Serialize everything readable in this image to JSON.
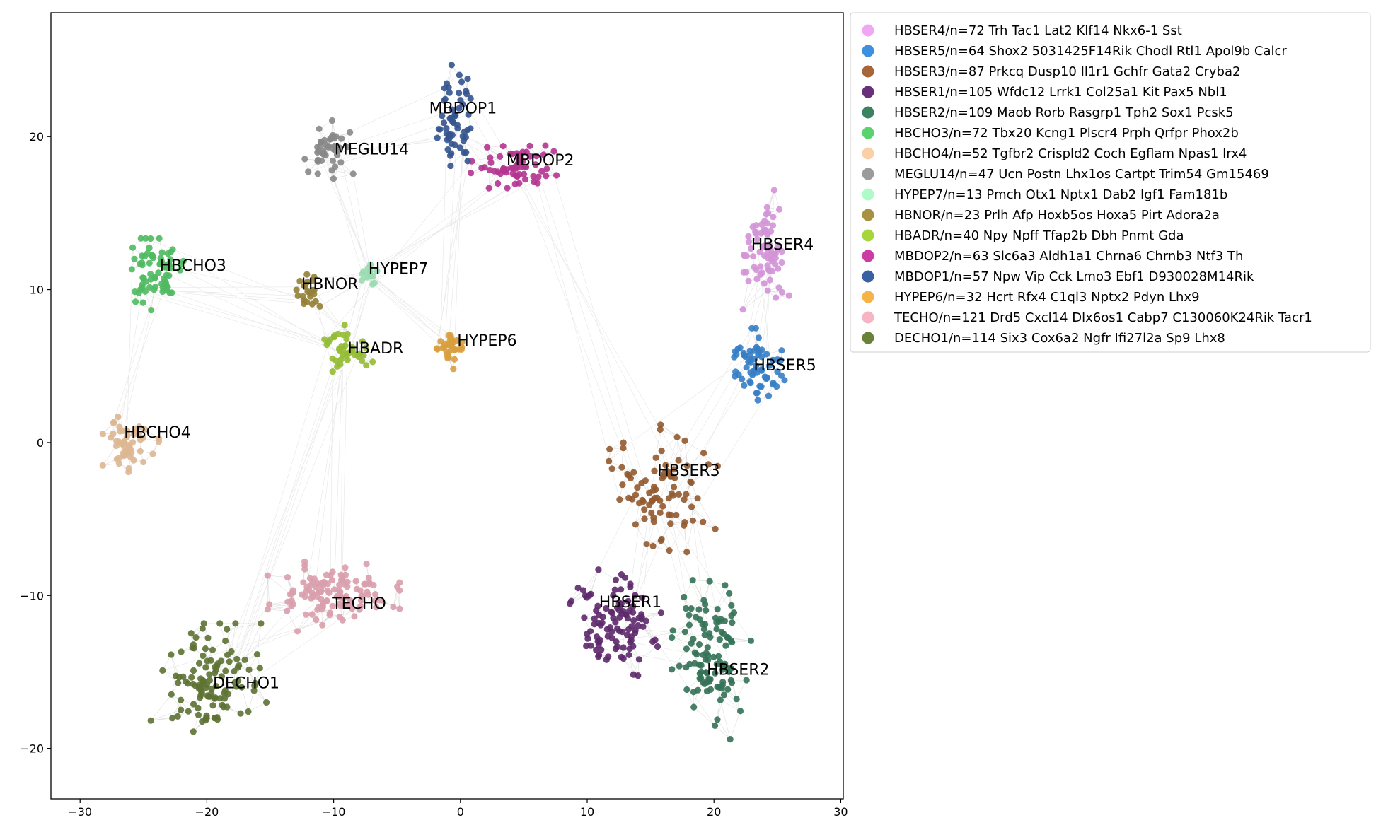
{
  "chart_data": {
    "type": "scatter",
    "title": "",
    "xlabel": "",
    "ylabel": "",
    "xlim": [
      -32.3,
      30.2
    ],
    "ylim": [
      -23.3,
      28.1
    ],
    "xticks": [
      -30,
      -20,
      -10,
      0,
      10,
      20,
      30
    ],
    "yticks": [
      -20,
      -10,
      0,
      10,
      20
    ],
    "grid": false,
    "legend_position": "outside-right",
    "edges": "light gray kNN graph edges connecting points within and between clusters",
    "series": [
      {
        "name": "HBSER4/n=72 Trh Tac1 Lat2 Klf14 Nkx6-1 Sst",
        "label": "HBSER4",
        "color": "#f0a8f4",
        "label_pos": [
          25.4,
          12.9
        ],
        "center": [
          24.1,
          12.6
        ],
        "spread": [
          1.4,
          3.0
        ],
        "n": 72,
        "seed": 11
      },
      {
        "name": "HBSER5/n=64 Shox2 5031425F14Rik Chodl Rtl1 Apol9b Calcr",
        "label": "HBSER5",
        "color": "#3d8fe0",
        "label_pos": [
          25.6,
          5.0
        ],
        "center": [
          23.4,
          5.0
        ],
        "spread": [
          1.8,
          1.9
        ],
        "n": 64,
        "seed": 12
      },
      {
        "name": "HBSER3/n=87 Prkcq Dusp10 Il1r1 Gchfr Gata2 Cryba2",
        "label": "HBSER3",
        "color": "#a66637",
        "label_pos": [
          18.0,
          -1.9
        ],
        "center": [
          16.0,
          -3.0
        ],
        "spread": [
          3.3,
          3.2
        ],
        "n": 87,
        "seed": 13
      },
      {
        "name": "HBSER1/n=105 Wfdc12 Lrrk1 Col25a1 Kit Pax5 Nbl1",
        "label": "HBSER1",
        "color": "#6a2f7a",
        "label_pos": [
          13.4,
          -10.5
        ],
        "center": [
          12.4,
          -11.6
        ],
        "spread": [
          2.9,
          2.8
        ],
        "n": 105,
        "seed": 14
      },
      {
        "name": "HBSER2/n=109 Maob Rorb Rasgrp1 Tph2 Sox1 Pcsk5",
        "label": "HBSER2",
        "color": "#3b8263",
        "label_pos": [
          21.9,
          -14.9
        ],
        "center": [
          19.8,
          -14.2
        ],
        "spread": [
          2.4,
          4.0
        ],
        "n": 109,
        "seed": 15
      },
      {
        "name": "HBCHO3/n=72 Tbx20 Kcng1 Plscr4 Prph Qrfpr Phox2b",
        "label": "HBCHO3",
        "color": "#5ad36e",
        "label_pos": [
          -21.1,
          11.5
        ],
        "center": [
          -23.8,
          11.0
        ],
        "spread": [
          1.9,
          1.8
        ],
        "n": 72,
        "seed": 16
      },
      {
        "name": "HBCHO4/n=52 Tgfbr2 Crispld2 Coch Egflam Npas1 Irx4",
        "label": "HBCHO4",
        "color": "#fbd0a6",
        "label_pos": [
          -23.9,
          0.6
        ],
        "center": [
          -26.0,
          -0.1
        ],
        "spread": [
          1.7,
          1.4
        ],
        "n": 52,
        "seed": 17
      },
      {
        "name": "MEGLU14/n=47 Ucn Postn Lhx1os Cartpt Trim54 Gm15469",
        "label": "MEGLU14",
        "color": "#9b9b9b",
        "label_pos": [
          -7.0,
          19.1
        ],
        "center": [
          -10.2,
          19.2
        ],
        "spread": [
          1.6,
          1.5
        ],
        "n": 47,
        "seed": 18
      },
      {
        "name": "HYPEP7/n=13 Pmch Otx1 Nptx1 Dab2 Igf1 Fam181b",
        "label": "HYPEP7",
        "color": "#aefac8",
        "label_pos": [
          -4.9,
          11.3
        ],
        "center": [
          -7.3,
          10.8
        ],
        "spread": [
          0.7,
          0.8
        ],
        "n": 13,
        "seed": 19
      },
      {
        "name": "HBNOR/n=23 Prlh Afp Hoxb5os Hoxa5 Pirt Adora2a",
        "label": "HBNOR",
        "color": "#a8923f",
        "label_pos": [
          -10.3,
          10.3
        ],
        "center": [
          -12.0,
          9.8
        ],
        "spread": [
          0.8,
          1.1
        ],
        "n": 23,
        "seed": 20
      },
      {
        "name": "HBADR/n=40 Npy Npff Tfap2b Dbh Pnmt Gda",
        "label": "HBADR",
        "color": "#a7d63a",
        "label_pos": [
          -6.7,
          6.1
        ],
        "center": [
          -9.0,
          6.0
        ],
        "spread": [
          1.6,
          1.3
        ],
        "n": 40,
        "seed": 21
      },
      {
        "name": "MBDOP2/n=63 Slc6a3 Aldh1a1 Chrna6 Chrnb3 Ntf3 Th",
        "label": "MBDOP2",
        "color": "#cc3ba4",
        "label_pos": [
          6.3,
          18.4
        ],
        "center": [
          4.2,
          18.0
        ],
        "spread": [
          2.6,
          1.2
        ],
        "n": 63,
        "seed": 22
      },
      {
        "name": "MBDOP1/n=57 Npw Vip Cck Lmo3 Ebf1 D930028M14Rik",
        "label": "MBDOP1",
        "color": "#3b5fa3",
        "label_pos": [
          0.2,
          21.8
        ],
        "center": [
          -0.4,
          20.8
        ],
        "spread": [
          1.1,
          3.0
        ],
        "n": 57,
        "seed": 23
      },
      {
        "name": "HYPEP6/n=32 Hcrt Rfx4 C1ql3 Nptx2 Pdyn Lhx9",
        "label": "HYPEP6",
        "color": "#f6b447",
        "label_pos": [
          2.1,
          6.6
        ],
        "center": [
          -0.7,
          6.0
        ],
        "spread": [
          0.9,
          1.1
        ],
        "n": 32,
        "seed": 24
      },
      {
        "name": "TECHO/n=121 Drd5 Cxcl14 Dlx6os1 Cabp7 C130060K24Rik Tacr1",
        "label": "TECHO",
        "color": "#f7b5c3",
        "label_pos": [
          -8.0,
          -10.6
        ],
        "center": [
          -10.0,
          -10.0
        ],
        "spread": [
          4.0,
          1.8
        ],
        "n": 121,
        "seed": 25
      },
      {
        "name": "DECHO1/n=114 Six3 Cox6a2 Ngfr Ifi27l2a Sp9 Lhx8",
        "label": "DECHO1",
        "color": "#6a813a",
        "label_pos": [
          -16.9,
          -15.8
        ],
        "center": [
          -19.8,
          -15.6
        ],
        "spread": [
          3.6,
          2.9
        ],
        "n": 114,
        "seed": 26
      }
    ]
  }
}
